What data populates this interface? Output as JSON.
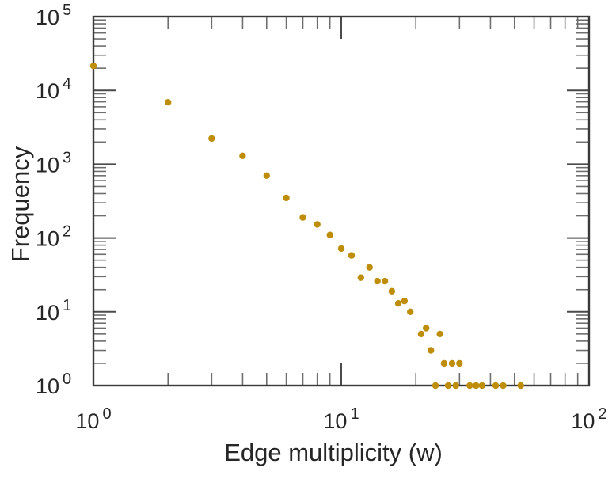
{
  "figure": {
    "background": "#ffffff"
  },
  "chart_data": {
    "type": "scatter",
    "title": "",
    "xlabel": "Edge multiplicity (w)",
    "ylabel": "Frequency",
    "x_scale": "log",
    "y_scale": "log",
    "xlim": [
      1,
      100
    ],
    "ylim": [
      1,
      100000
    ],
    "grid": false,
    "legend_position": "none",
    "tick_label_base": "10",
    "x_tick_exponents": [
      0,
      1,
      2
    ],
    "y_tick_exponents": [
      0,
      1,
      2,
      3,
      4,
      5
    ],
    "ticks_style": "inward, mirrored on all four sides, log minor ticks",
    "marker": {
      "shape": "filled-circle",
      "color": "#BE8E0B",
      "radius": 4.2
    },
    "frame_color": "#3a3a3a",
    "major_tick_color": "#4a4a4a",
    "minor_tick_color": "#6e6e6e",
    "text_color": "#262626",
    "points": [
      [
        1,
        21500
      ],
      [
        2,
        6900
      ],
      [
        3,
        2230
      ],
      [
        4,
        1300
      ],
      [
        5,
        700
      ],
      [
        6,
        350
      ],
      [
        7,
        190
      ],
      [
        8,
        153
      ],
      [
        9,
        110
      ],
      [
        10,
        72
      ],
      [
        11,
        58
      ],
      [
        12,
        29
      ],
      [
        13,
        40
      ],
      [
        14,
        26
      ],
      [
        15,
        26
      ],
      [
        16,
        19
      ],
      [
        17,
        13
      ],
      [
        18,
        14
      ],
      [
        19,
        10
      ],
      [
        21,
        5
      ],
      [
        22,
        6
      ],
      [
        23,
        3
      ],
      [
        24,
        1
      ],
      [
        25,
        5
      ],
      [
        26,
        2
      ],
      [
        27,
        1
      ],
      [
        28,
        2
      ],
      [
        29,
        1
      ],
      [
        30,
        2
      ],
      [
        33,
        1
      ],
      [
        35,
        1
      ],
      [
        37,
        1
      ],
      [
        42,
        1
      ],
      [
        45,
        1
      ],
      [
        53,
        1
      ]
    ]
  }
}
